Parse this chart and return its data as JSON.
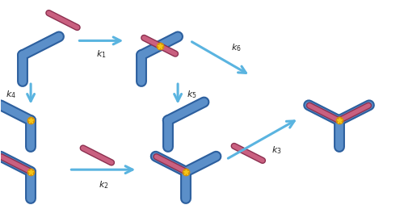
{
  "fig_width": 5.0,
  "fig_height": 2.55,
  "dpi": 100,
  "bg_color": "#ffffff",
  "hc_fill": "#5b8fc9",
  "hc_edge": "#2c5f9e",
  "lc_fill": "#c96080",
  "lc_edge": "#8c3050",
  "arrow_color": "#5ab4e0",
  "bond_color": "#f5c518",
  "bond_edge": "#d4920a",
  "text_color": "#222222",
  "arrow_lw": 2.2,
  "arrow_ms": 16,
  "hc_lw_fill": 7,
  "hc_lw_edge": 10,
  "lc_lw_fill": 4,
  "lc_lw_edge": 6
}
